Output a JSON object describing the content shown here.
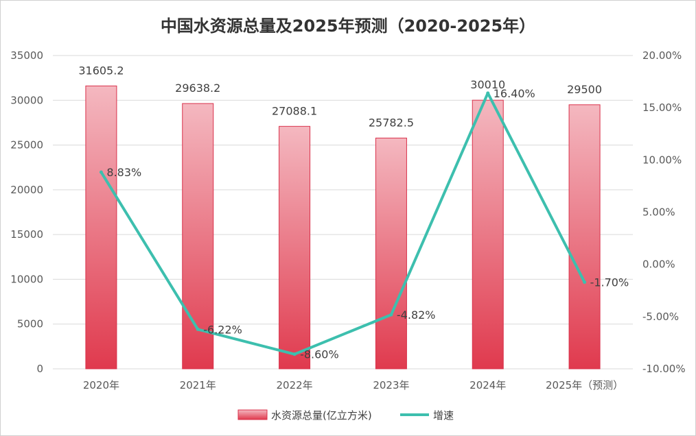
{
  "chart_data": {
    "type": "bar",
    "title": "中国水资源总量及2025年预测（2020-2025年）",
    "categories": [
      "2020年",
      "2021年",
      "2022年",
      "2023年",
      "2024年",
      "2025年（预测）"
    ],
    "series": [
      {
        "name": "水资源总量(亿立方米)",
        "type": "bar",
        "axis": "left",
        "values": [
          31605.2,
          29638.2,
          27088.1,
          25782.5,
          30010,
          29500
        ],
        "labels": [
          "31605.2",
          "29638.2",
          "27088.1",
          "25782.5",
          "30010",
          "29500"
        ]
      },
      {
        "name": "增速",
        "type": "line",
        "axis": "right",
        "values": [
          8.83,
          -6.22,
          -8.6,
          -4.82,
          16.4,
          -1.7
        ],
        "labels": [
          "8.83%",
          "-6.22%",
          "-8.60%",
          "-4.82%",
          "16.40%",
          "-1.70%"
        ]
      }
    ],
    "y_left": {
      "range": [
        0,
        35000
      ],
      "ticks": [
        "0",
        "5000",
        "10000",
        "15000",
        "20000",
        "25000",
        "30000",
        "35000"
      ],
      "tick_values": [
        0,
        5000,
        10000,
        15000,
        20000,
        25000,
        30000,
        35000
      ]
    },
    "y_right": {
      "range": [
        -10,
        20
      ],
      "ticks": [
        "-10.00%",
        "-5.00%",
        "0.00%",
        "5.00%",
        "10.00%",
        "15.00%",
        "20.00%"
      ],
      "tick_values": [
        -10,
        -5,
        0,
        5,
        10,
        15,
        20
      ]
    },
    "grid": true,
    "legend_position": "bottom",
    "colors": {
      "bar_top": "#f4b8c0",
      "bar_bottom": "#e03a4e",
      "bar_stroke": "#d9304a",
      "line": "#3dbfae",
      "grid": "#d9d9d9"
    }
  }
}
